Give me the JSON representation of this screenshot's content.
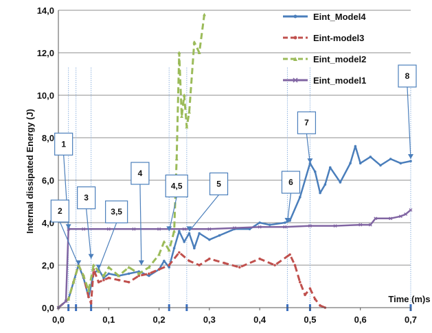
{
  "chart_data": {
    "type": "line",
    "title": "",
    "xlabel": "Time (m)s",
    "ylabel": "Internal dissipated Energy (J)",
    "xlim": [
      0,
      0.7
    ],
    "ylim": [
      0,
      14
    ],
    "x_ticks": [
      "0,0",
      "0,1",
      "0,2",
      "0,3",
      "0,4",
      "0,5",
      "0,6",
      "0,7"
    ],
    "y_ticks": [
      "0,0",
      "2,0",
      "4,0",
      "6,0",
      "8,0",
      "10,0",
      "12,0",
      "14,0"
    ],
    "grid": "horizontal",
    "legend": "right",
    "series": [
      {
        "name": "Eint_Model4",
        "color": "#4a7ebb",
        "style": "solid-with-markers",
        "x": [
          0.0,
          0.02,
          0.03,
          0.04,
          0.05,
          0.06,
          0.07,
          0.08,
          0.09,
          0.1,
          0.12,
          0.14,
          0.16,
          0.18,
          0.2,
          0.21,
          0.22,
          0.23,
          0.24,
          0.25,
          0.26,
          0.27,
          0.28,
          0.3,
          0.32,
          0.35,
          0.38,
          0.4,
          0.42,
          0.45,
          0.46,
          0.48,
          0.5,
          0.51,
          0.52,
          0.53,
          0.54,
          0.56,
          0.58,
          0.59,
          0.6,
          0.62,
          0.64,
          0.66,
          0.68,
          0.7
        ],
        "y": [
          0.0,
          0.4,
          1.2,
          2.0,
          1.4,
          0.5,
          1.6,
          1.8,
          1.4,
          1.6,
          1.5,
          1.6,
          1.7,
          1.5,
          1.8,
          2.2,
          1.9,
          2.8,
          3.6,
          3.1,
          3.5,
          2.8,
          3.5,
          3.2,
          3.4,
          3.7,
          3.7,
          4.0,
          3.9,
          4.0,
          4.1,
          5.2,
          6.8,
          6.4,
          5.4,
          5.8,
          6.6,
          5.9,
          6.8,
          7.6,
          6.8,
          7.1,
          6.7,
          7.0,
          6.8,
          6.9
        ]
      },
      {
        "name": "Eint-model3",
        "color": "#c0504d",
        "style": "dashed-with-markers",
        "x": [
          0.0,
          0.02,
          0.03,
          0.04,
          0.05,
          0.06,
          0.065,
          0.07,
          0.08,
          0.09,
          0.1,
          0.12,
          0.14,
          0.16,
          0.18,
          0.2,
          0.22,
          0.24,
          0.26,
          0.28,
          0.3,
          0.33,
          0.36,
          0.4,
          0.43,
          0.46,
          0.47,
          0.48,
          0.49,
          0.5,
          0.51,
          0.52,
          0.53
        ],
        "y": [
          0.0,
          0.4,
          1.2,
          2.0,
          1.5,
          0.5,
          0.2,
          1.8,
          1.2,
          1.3,
          1.4,
          1.3,
          1.2,
          1.5,
          1.6,
          1.8,
          2.0,
          2.6,
          2.2,
          2.0,
          2.3,
          2.1,
          1.9,
          2.3,
          2.0,
          2.5,
          2.0,
          1.2,
          0.6,
          0.9,
          0.4,
          0.1,
          0.0
        ]
      },
      {
        "name": "Eint_model2",
        "color": "#9bbb59",
        "style": "dashed-with-markers",
        "x": [
          0.0,
          0.02,
          0.03,
          0.04,
          0.05,
          0.06,
          0.07,
          0.08,
          0.09,
          0.1,
          0.12,
          0.14,
          0.16,
          0.18,
          0.2,
          0.21,
          0.22,
          0.23,
          0.235,
          0.24,
          0.245,
          0.25,
          0.255,
          0.26,
          0.27,
          0.28,
          0.29
        ],
        "y": [
          0.0,
          0.4,
          1.2,
          2.0,
          1.5,
          0.8,
          2.0,
          1.7,
          1.5,
          1.9,
          1.5,
          1.9,
          1.6,
          1.9,
          2.5,
          3.1,
          2.7,
          3.6,
          7.0,
          12.0,
          9.0,
          10.0,
          8.5,
          9.2,
          12.5,
          12.0,
          13.8
        ]
      },
      {
        "name": "Eint_model1",
        "color": "#8064a2",
        "style": "solid-with-markers",
        "x": [
          0.0,
          0.015,
          0.02,
          0.05,
          0.1,
          0.15,
          0.2,
          0.25,
          0.3,
          0.35,
          0.4,
          0.45,
          0.5,
          0.55,
          0.6,
          0.62,
          0.63,
          0.66,
          0.68,
          0.69,
          0.7
        ],
        "y": [
          0.0,
          0.3,
          3.7,
          3.7,
          3.7,
          3.7,
          3.7,
          3.7,
          3.7,
          3.75,
          3.8,
          3.8,
          3.85,
          3.85,
          3.9,
          3.9,
          4.2,
          4.2,
          4.3,
          4.4,
          4.6
        ]
      }
    ],
    "vertical_markers": [
      0.02,
      0.035,
      0.065,
      0.22,
      0.255,
      0.455,
      0.5,
      0.7
    ],
    "callouts": [
      {
        "label": "1",
        "x": 0.02,
        "y": 3.7
      },
      {
        "label": "2",
        "x": 0.04,
        "y": 2.0
      },
      {
        "label": "3",
        "x": 0.065,
        "y": 2.3
      },
      {
        "label": "3,5",
        "x": 0.08,
        "y": 1.8
      },
      {
        "label": "4",
        "x": 0.165,
        "y": 2.0
      },
      {
        "label": "4,5",
        "x": 0.22,
        "y": 3.6
      },
      {
        "label": "5",
        "x": 0.26,
        "y": 3.6
      },
      {
        "label": "6",
        "x": 0.455,
        "y": 4.0
      },
      {
        "label": "7",
        "x": 0.5,
        "y": 6.8
      },
      {
        "label": "8",
        "x": 0.7,
        "y": 7.0
      }
    ]
  }
}
